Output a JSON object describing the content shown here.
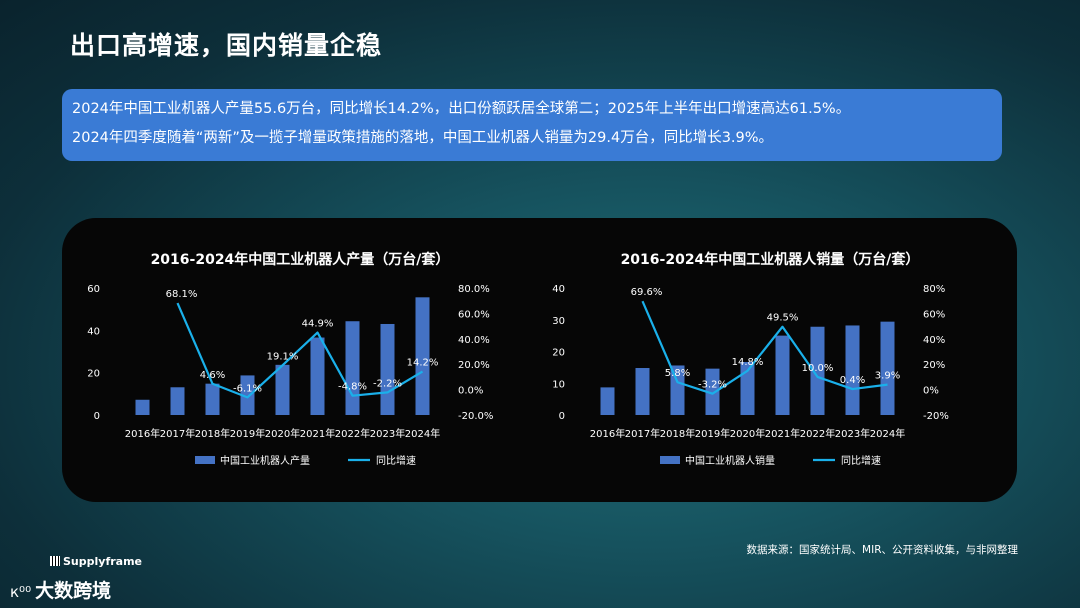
{
  "page_title": "出口高增速，国内销量企稳",
  "summary": {
    "line1": "2024年中国工业机器人产量55.6万台，同比增长14.2%，出口份额跃居全球第二；2025年上半年出口增速高达61.5%。",
    "line2": "2024年四季度随着“两新”及一揽子增量政策措施的落地，中国工业机器人销量为29.4万台，同比增长3.9%。"
  },
  "source": "数据来源：国家统计局、MIR、公开资料收集，与非网整理",
  "logos": {
    "supplyframe": "Supplyframe",
    "dashujing": "大数跨境",
    "mark": "к⁰⁰"
  },
  "colors": {
    "bar": "#4472c4",
    "line": "#1ab0ea"
  },
  "chart_data": [
    {
      "type": "bar",
      "title": "2016-2024年中国工业机器人产量（万台/套）",
      "categories": [
        "2016年",
        "2017年",
        "2018年",
        "2019年",
        "2020年",
        "2021年",
        "2022年",
        "2023年",
        "2024年"
      ],
      "series": [
        {
          "name": "中国工业机器人产量",
          "type": "bar",
          "axis": "left",
          "values": [
            7.2,
            13.1,
            14.8,
            18.7,
            23.7,
            36.6,
            44.3,
            43.0,
            55.6
          ]
        },
        {
          "name": "同比增速",
          "type": "line",
          "axis": "right",
          "values": [
            null,
            68.1,
            4.6,
            -6.1,
            19.1,
            44.9,
            -4.8,
            -2.2,
            14.2
          ],
          "labels": [
            "",
            "68.1%",
            "4.6%",
            "-6.1%",
            "19.1%",
            "44.9%",
            "-4.8%",
            "-2.2%",
            "14.2%"
          ]
        }
      ],
      "ylim": [
        0,
        60
      ],
      "yticks": [
        "0",
        "20",
        "40",
        "60"
      ],
      "ylim_right": [
        -20,
        80
      ],
      "yticks_right": [
        "-20.0%",
        "0.0%",
        "20.0%",
        "40.0%",
        "60.0%",
        "80.0%"
      ],
      "legend": "bottom"
    },
    {
      "type": "bar",
      "title": "2016-2024年中国工业机器人销量（万台/套）",
      "categories": [
        "2016年",
        "2017年",
        "2018年",
        "2019年",
        "2020年",
        "2021年",
        "2022年",
        "2023年",
        "2024年"
      ],
      "series": [
        {
          "name": "中国工业机器人销量",
          "type": "bar",
          "axis": "left",
          "values": [
            8.7,
            14.8,
            15.6,
            14.6,
            16.7,
            25.0,
            27.8,
            28.2,
            29.4
          ]
        },
        {
          "name": "同比增速",
          "type": "line",
          "axis": "right",
          "values": [
            null,
            69.6,
            5.8,
            -3.2,
            14.8,
            49.5,
            10.0,
            0.4,
            3.9
          ],
          "labels": [
            "",
            "69.6%",
            "5.8%",
            "-3.2%",
            "14.8%",
            "49.5%",
            "10.0%",
            "0.4%",
            "3.9%"
          ]
        }
      ],
      "ylim": [
        0,
        40
      ],
      "yticks": [
        "0",
        "10",
        "20",
        "30",
        "40"
      ],
      "ylim_right": [
        -20,
        80
      ],
      "yticks_right": [
        "-20%",
        "0%",
        "20%",
        "40%",
        "60%",
        "80%"
      ],
      "legend": "bottom"
    }
  ]
}
